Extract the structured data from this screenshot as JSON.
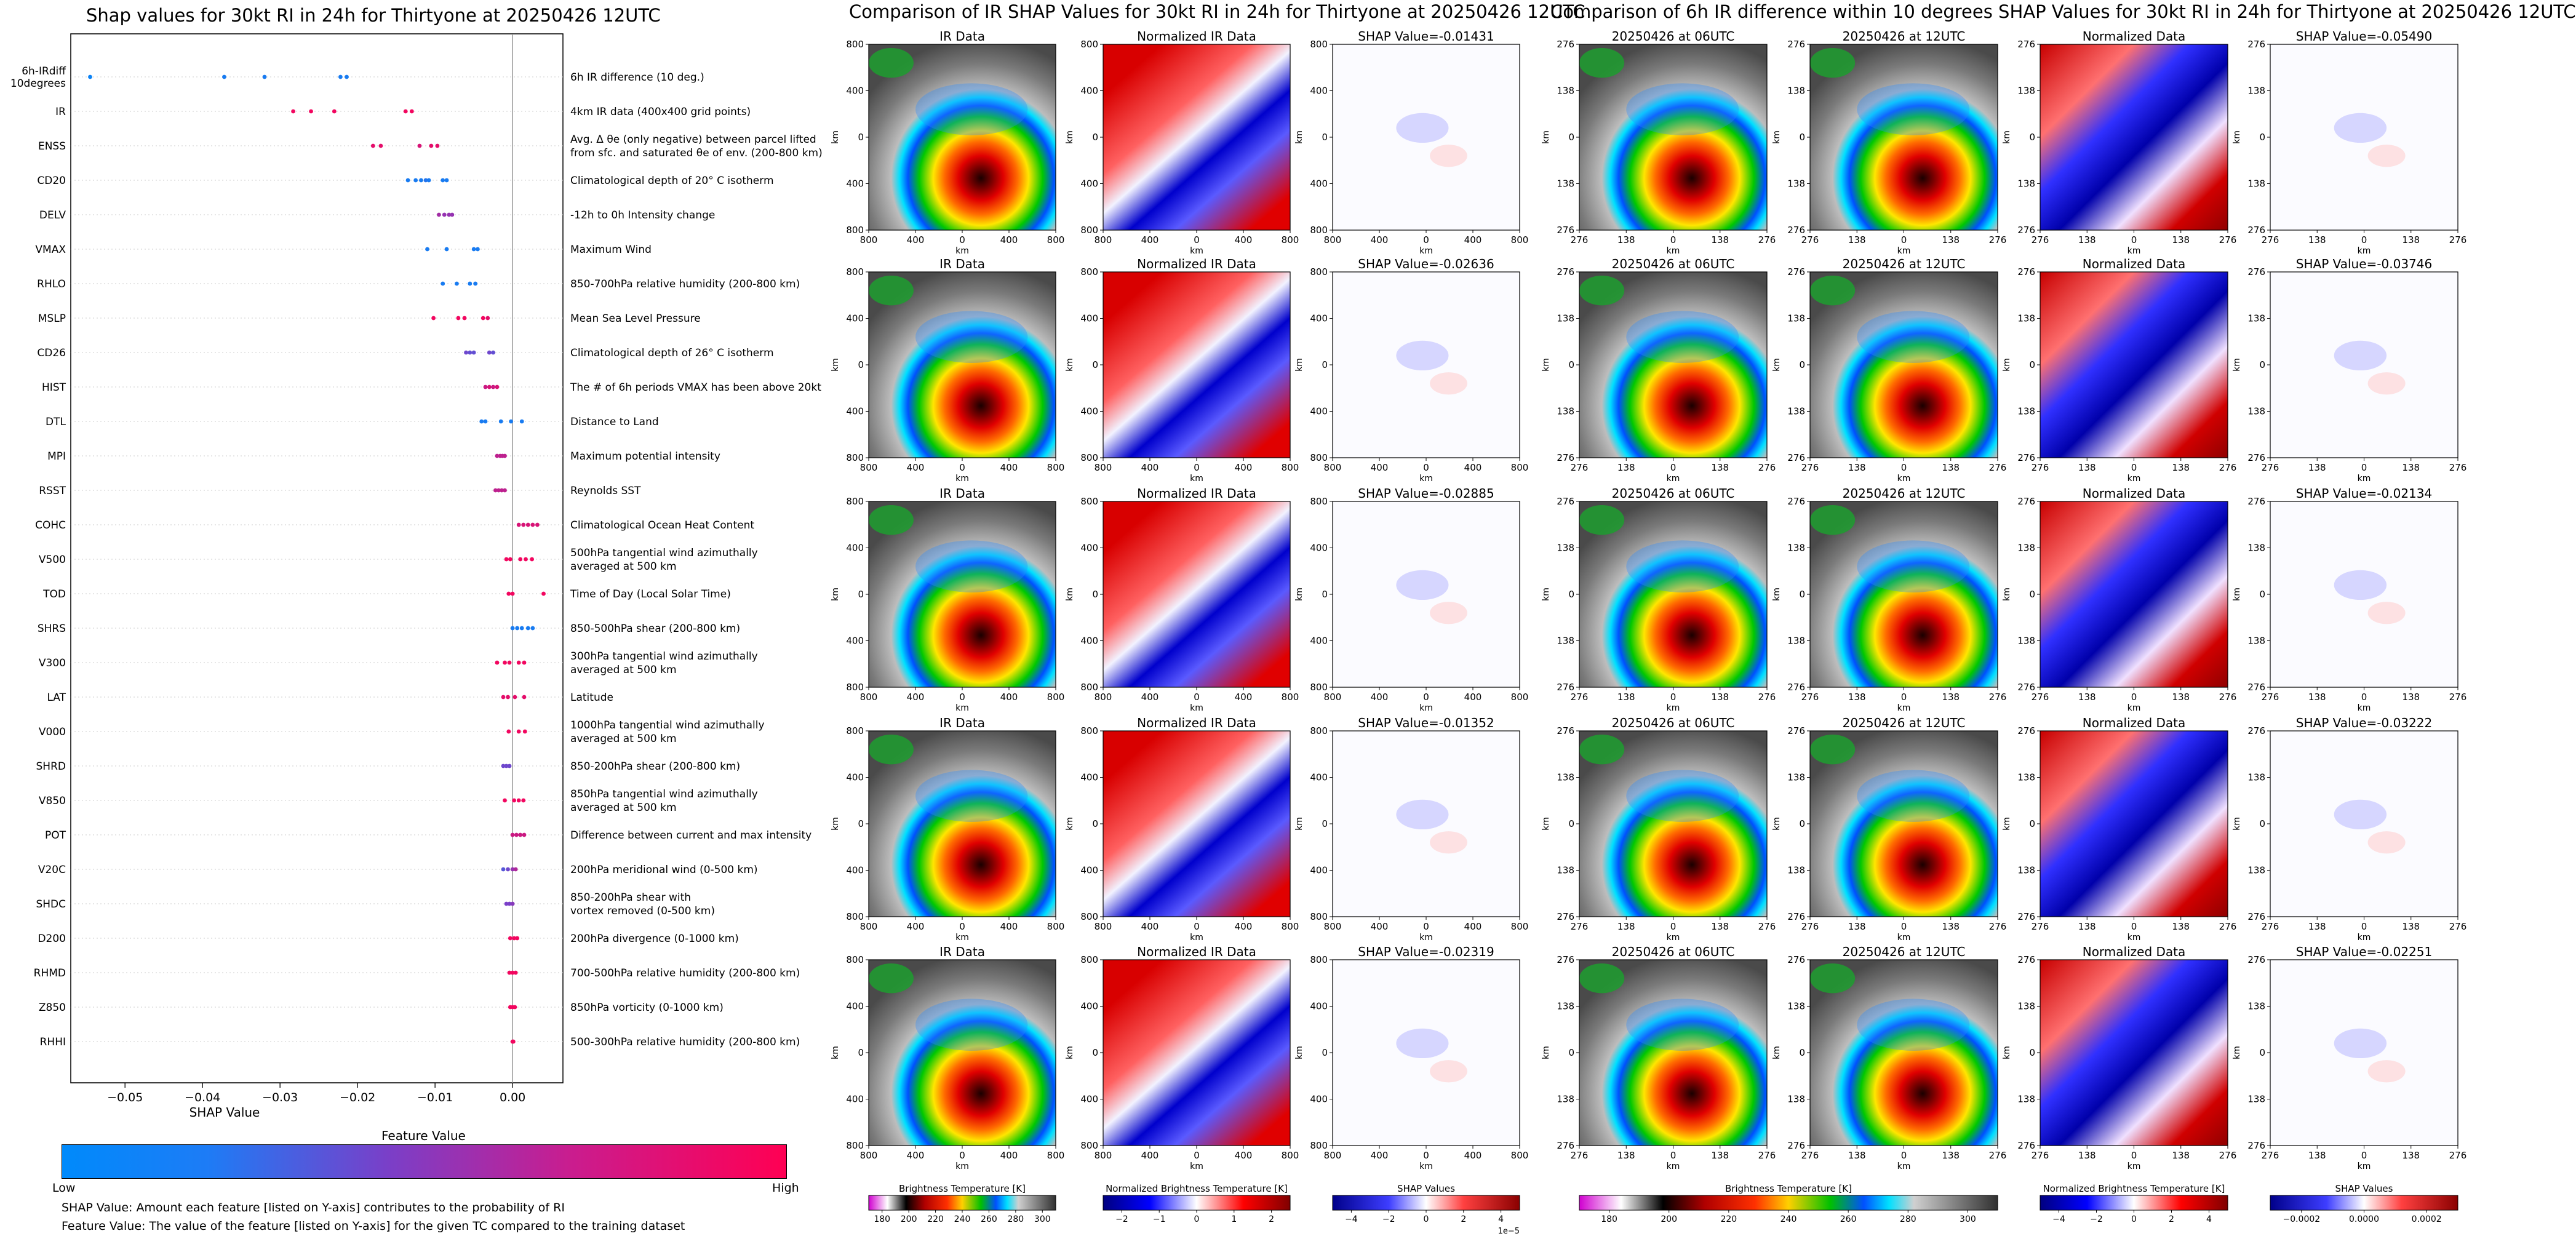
{
  "beeswarm": {
    "title": "Shap values for 30kt RI in 24h for Thirtyone at 20250426 12UTC",
    "xlabel": "SHAP Value",
    "xticks": [
      "−0.05",
      "−0.04",
      "−0.03",
      "−0.02",
      "−0.01",
      "0.00"
    ],
    "colorbar_title": "Feature Value",
    "colorbar_low": "Low",
    "colorbar_high": "High",
    "note1": "SHAP Value: Amount each feature [listed on Y-axis] contributes to the probability of RI",
    "note2": "Feature Value: The value of the feature [listed on Y-axis] for the given TC compared to the training dataset"
  },
  "chart_data": [
    {
      "type": "scatter",
      "title": "Shap values for 30kt RI in 24h for Thirtyone at 20250426 12UTC",
      "xlabel": "SHAP Value",
      "xlim": [
        -0.057,
        0.0065
      ],
      "features": [
        {
          "name": "6h-IRdiff\n10degrees",
          "desc": "6h IR difference (10 deg.)",
          "pts": [
            [
              -0.0545,
              0.05
            ],
            [
              -0.0372,
              0.1
            ],
            [
              -0.032,
              0.1
            ],
            [
              -0.0222,
              0.1
            ],
            [
              -0.0214,
              0.1
            ]
          ]
        },
        {
          "name": "IR",
          "desc": "4km IR data (400x400 grid points)",
          "pts": [
            [
              -0.0283,
              0.95
            ],
            [
              -0.026,
              0.95
            ],
            [
              -0.023,
              0.95
            ],
            [
              -0.0138,
              0.95
            ],
            [
              -0.013,
              0.95
            ]
          ]
        },
        {
          "name": "ENSS",
          "desc": "Avg. Δ θe (only negative) between parcel lifted\nfrom sfc. and saturated θe of env. (200-800 km)",
          "pts": [
            [
              -0.018,
              0.9
            ],
            [
              -0.017,
              0.9
            ],
            [
              -0.012,
              0.85
            ],
            [
              -0.0105,
              0.9
            ],
            [
              -0.0097,
              0.9
            ]
          ]
        },
        {
          "name": "CD20",
          "desc": "Climatological depth of 20° C isotherm",
          "pts": [
            [
              -0.0135,
              0.1
            ],
            [
              -0.0125,
              0.1
            ],
            [
              -0.0118,
              0.1
            ],
            [
              -0.0112,
              0.15
            ],
            [
              -0.0108,
              0.1
            ],
            [
              -0.009,
              0.1
            ],
            [
              -0.0085,
              0.1
            ]
          ]
        },
        {
          "name": "DELV",
          "desc": "-12h to 0h Intensity change",
          "pts": [
            [
              -0.0095,
              0.65
            ],
            [
              -0.0088,
              0.6
            ],
            [
              -0.0082,
              0.6
            ],
            [
              -0.0078,
              0.6
            ]
          ]
        },
        {
          "name": "VMAX",
          "desc": "Maximum Wind",
          "pts": [
            [
              -0.011,
              0.1
            ],
            [
              -0.0085,
              0.1
            ],
            [
              -0.005,
              0.1
            ],
            [
              -0.0045,
              0.1
            ]
          ]
        },
        {
          "name": "RHLO",
          "desc": "850-700hPa relative humidity (200-800 km)",
          "pts": [
            [
              -0.009,
              0.1
            ],
            [
              -0.0072,
              0.1
            ],
            [
              -0.0055,
              0.1
            ],
            [
              -0.0048,
              0.1
            ]
          ]
        },
        {
          "name": "MSLP",
          "desc": "Mean Sea Level Pressure",
          "pts": [
            [
              -0.0102,
              0.95
            ],
            [
              -0.007,
              0.95
            ],
            [
              -0.0062,
              0.95
            ],
            [
              -0.0038,
              0.95
            ],
            [
              -0.0032,
              0.9
            ]
          ]
        },
        {
          "name": "CD26",
          "desc": "Climatological depth of 26° C isotherm",
          "pts": [
            [
              -0.006,
              0.45
            ],
            [
              -0.0055,
              0.4
            ],
            [
              -0.005,
              0.4
            ],
            [
              -0.003,
              0.45
            ],
            [
              -0.0025,
              0.4
            ]
          ]
        },
        {
          "name": "HIST",
          "desc": "The # of 6h periods VMAX has been above 20kt",
          "pts": [
            [
              -0.0035,
              0.8
            ],
            [
              -0.003,
              0.85
            ],
            [
              -0.0025,
              0.8
            ],
            [
              -0.002,
              0.85
            ]
          ]
        },
        {
          "name": "DTL",
          "desc": "Distance to Land",
          "pts": [
            [
              -0.004,
              0.1
            ],
            [
              -0.0035,
              0.1
            ],
            [
              -0.0015,
              0.1
            ],
            [
              -0.0002,
              0.1
            ],
            [
              0.0012,
              0.1
            ]
          ]
        },
        {
          "name": "MPI",
          "desc": "Maximum potential intensity",
          "pts": [
            [
              -0.002,
              0.75
            ],
            [
              -0.0016,
              0.75
            ],
            [
              -0.0013,
              0.75
            ],
            [
              -0.001,
              0.75
            ]
          ]
        },
        {
          "name": "RSST",
          "desc": "Reynolds SST",
          "pts": [
            [
              -0.0022,
              0.75
            ],
            [
              -0.0018,
              0.75
            ],
            [
              -0.0014,
              0.75
            ],
            [
              -0.001,
              0.75
            ]
          ]
        },
        {
          "name": "COHC",
          "desc": "Climatological Ocean Heat Content",
          "pts": [
            [
              0.0008,
              0.85
            ],
            [
              0.0014,
              0.85
            ],
            [
              0.002,
              0.85
            ],
            [
              0.0026,
              0.85
            ],
            [
              0.0032,
              0.85
            ]
          ]
        },
        {
          "name": "V500",
          "desc": "500hPa tangential wind azimuthally\naveraged at 500 km",
          "pts": [
            [
              -0.0008,
              0.95
            ],
            [
              -0.0003,
              0.95
            ],
            [
              0.001,
              0.95
            ],
            [
              0.0017,
              0.95
            ],
            [
              0.0025,
              0.95
            ]
          ]
        },
        {
          "name": "TOD",
          "desc": "Time of Day (Local Solar Time)",
          "pts": [
            [
              -0.0005,
              0.95
            ],
            [
              0.0,
              0.95
            ],
            [
              0.004,
              0.95
            ]
          ]
        },
        {
          "name": "SHRS",
          "desc": "850-500hPa shear (200-800 km)",
          "pts": [
            [
              0.0,
              0.1
            ],
            [
              0.0006,
              0.1
            ],
            [
              0.0012,
              0.1
            ],
            [
              0.002,
              0.1
            ],
            [
              0.0026,
              0.1
            ]
          ]
        },
        {
          "name": "V300",
          "desc": "300hPa tangential wind azimuthally\naveraged at 500 km",
          "pts": [
            [
              -0.002,
              0.95
            ],
            [
              -0.001,
              0.95
            ],
            [
              -0.0004,
              0.95
            ],
            [
              0.0008,
              0.95
            ],
            [
              0.0015,
              0.95
            ]
          ]
        },
        {
          "name": "LAT",
          "desc": "Latitude",
          "pts": [
            [
              -0.0012,
              0.9
            ],
            [
              -0.0006,
              0.9
            ],
            [
              0.0003,
              0.9
            ],
            [
              0.0015,
              0.9
            ]
          ]
        },
        {
          "name": "V000",
          "desc": "1000hPa tangential wind azimuthally\naveraged at 500 km",
          "pts": [
            [
              -0.0005,
              0.95
            ],
            [
              0.0008,
              0.95
            ],
            [
              0.0016,
              0.95
            ]
          ]
        },
        {
          "name": "SHRD",
          "desc": "850-200hPa shear (200-800 km)",
          "pts": [
            [
              -0.0012,
              0.45
            ],
            [
              -0.0008,
              0.45
            ],
            [
              -0.0004,
              0.45
            ]
          ]
        },
        {
          "name": "V850",
          "desc": "850hPa tangential wind azimuthally\naveraged at 500 km",
          "pts": [
            [
              -0.001,
              0.95
            ],
            [
              0.0002,
              0.95
            ],
            [
              0.0008,
              0.95
            ],
            [
              0.0014,
              0.95
            ]
          ]
        },
        {
          "name": "POT",
          "desc": "Difference between current and max intensity",
          "pts": [
            [
              0.0,
              0.8
            ],
            [
              0.0005,
              0.8
            ],
            [
              0.001,
              0.8
            ],
            [
              0.0015,
              0.8
            ]
          ]
        },
        {
          "name": "V20C",
          "desc": "200hPa meridional wind (0-500 km)",
          "pts": [
            [
              -0.0012,
              0.35
            ],
            [
              -0.0006,
              0.45
            ],
            [
              0.0,
              0.6
            ],
            [
              0.0004,
              0.7
            ]
          ]
        },
        {
          "name": "SHDC",
          "desc": "850-200hPa shear with\nvortex removed (0-500 km)",
          "pts": [
            [
              -0.0008,
              0.5
            ],
            [
              -0.0004,
              0.5
            ],
            [
              0.0,
              0.55
            ]
          ]
        },
        {
          "name": "D200",
          "desc": "200hPa divergence (0-1000 km)",
          "pts": [
            [
              -0.0003,
              0.95
            ],
            [
              0.0002,
              0.95
            ],
            [
              0.0006,
              0.95
            ]
          ]
        },
        {
          "name": "RHMD",
          "desc": "700-500hPa relative humidity (200-800 km)",
          "pts": [
            [
              -0.0004,
              0.95
            ],
            [
              0.0,
              0.95
            ],
            [
              0.0004,
              0.95
            ]
          ]
        },
        {
          "name": "Z850",
          "desc": "850hPa vorticity (0-1000 km)",
          "pts": [
            [
              -0.0003,
              0.95
            ],
            [
              0.0,
              0.95
            ],
            [
              0.0003,
              0.95
            ]
          ]
        },
        {
          "name": "RHHI",
          "desc": "500-300hPa relative humidity (200-800 km)",
          "pts": [
            [
              0.0,
              0.95
            ],
            [
              0.0001,
              0.95
            ]
          ]
        }
      ]
    },
    {
      "type": "heatmap",
      "title": "Comparison of IR SHAP Values for 30kt RI in 24h for Thirtyone at 20250426 12UTC",
      "xlabel": "km",
      "ylabel": "km",
      "xticks": [
        "800",
        "400",
        "0",
        "400",
        "800"
      ],
      "yticks": [
        "800",
        "400",
        "0",
        "400",
        "800"
      ],
      "rows": [
        {
          "ir_title": "IR Data",
          "norm_title": "Normalized IR Data",
          "shap_title": "SHAP Value=-0.01431"
        },
        {
          "ir_title": "IR Data",
          "norm_title": "Normalized IR Data",
          "shap_title": "SHAP Value=-0.02636"
        },
        {
          "ir_title": "IR Data",
          "norm_title": "Normalized IR Data",
          "shap_title": "SHAP Value=-0.02885"
        },
        {
          "ir_title": "IR Data",
          "norm_title": "Normalized IR Data",
          "shap_title": "SHAP Value=-0.01352"
        },
        {
          "ir_title": "IR Data",
          "norm_title": "Normalized IR Data",
          "shap_title": "SHAP Value=-0.02319"
        }
      ],
      "colorbars": [
        {
          "label": "Brightness Temperature [K]",
          "ticks": [
            "180",
            "200",
            "220",
            "240",
            "260",
            "280",
            "300"
          ]
        },
        {
          "label": "Normalized Brightness Temperature [K]",
          "ticks": [
            "−2",
            "−1",
            "0",
            "1",
            "2"
          ]
        },
        {
          "label": "SHAP Values",
          "ticks": [
            "−4",
            "−2",
            "0",
            "2",
            "4"
          ],
          "exponent": "1e−5"
        }
      ]
    },
    {
      "type": "heatmap",
      "title": "Comparison of 6h IR difference within 10 degrees SHAP Values for 30kt RI in 24h for Thirtyone at 20250426 12UTC",
      "xlabel": "km",
      "ylabel": "km",
      "xticks": [
        "276",
        "138",
        "0",
        "138",
        "276"
      ],
      "yticks": [
        "276",
        "138",
        "0",
        "138",
        "276"
      ],
      "rows": [
        {
          "t06": "20250426 at 06UTC",
          "t12": "20250426 at 12UTC",
          "norm_title": "Normalized Data",
          "shap_title": "SHAP Value=-0.05490"
        },
        {
          "t06": "20250426 at 06UTC",
          "t12": "20250426 at 12UTC",
          "norm_title": "Normalized Data",
          "shap_title": "SHAP Value=-0.03746"
        },
        {
          "t06": "20250426 at 06UTC",
          "t12": "20250426 at 12UTC",
          "norm_title": "Normalized Data",
          "shap_title": "SHAP Value=-0.02134"
        },
        {
          "t06": "20250426 at 06UTC",
          "t12": "20250426 at 12UTC",
          "norm_title": "Normalized Data",
          "shap_title": "SHAP Value=-0.03222"
        },
        {
          "t06": "20250426 at 06UTC",
          "t12": "20250426 at 12UTC",
          "norm_title": "Normalized Data",
          "shap_title": "SHAP Value=-0.02251"
        }
      ],
      "colorbars": [
        {
          "label": "Brightness Temperature [K]",
          "ticks": [
            "180",
            "200",
            "220",
            "240",
            "260",
            "280",
            "300"
          ]
        },
        {
          "label": "Normalized Brightness Temperature [K]",
          "ticks": [
            "−4",
            "−2",
            "0",
            "2",
            "4"
          ]
        },
        {
          "label": "SHAP Values",
          "ticks": [
            "−0.0002",
            "0.0000",
            "0.0002"
          ]
        }
      ]
    }
  ]
}
